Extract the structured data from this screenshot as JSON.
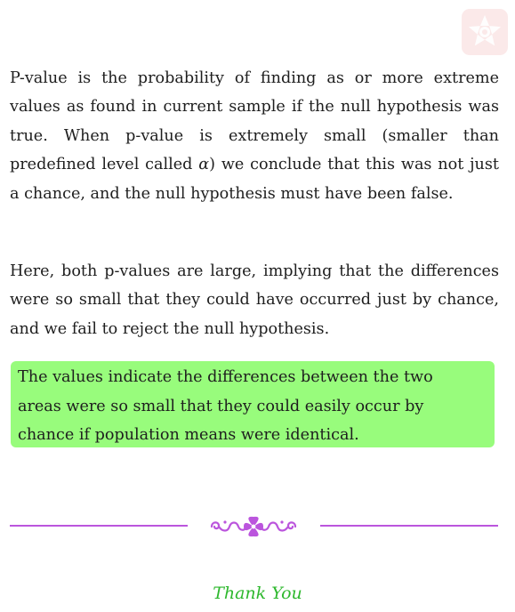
{
  "body": {
    "paragraph1": {
      "before_alpha": "P-value is the probability of finding as or more extreme values as found in current sample if the null hypothesis was true. When p-value is extremely small (smaller than predefined level called ",
      "alpha": "α",
      "after_alpha": ") we conclude that this was not just a chance, and the null hypothesis must have been false."
    },
    "paragraph2": "Here, both p-values are large, implying that the differences were so small that they could have occurred just by chance, and we fail to reject the null hypothesis."
  },
  "highlight": {
    "text": "The values indicate the differences between the two areas were so small that they could easily occur by chance if population means were identical.",
    "color": "#98fc7c"
  },
  "divider": {
    "color": "#bb55dd",
    "ornament_icon": "floral-flourish-icon"
  },
  "logo": {
    "icon": "star-flower-logo-icon",
    "color": "#fbe9e9"
  },
  "footer": {
    "thanks": "Thank You",
    "color": "#2eb82e"
  }
}
